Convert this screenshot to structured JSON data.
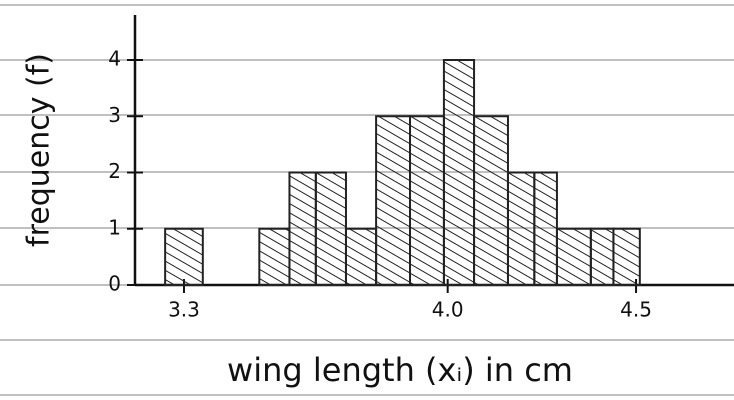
{
  "chart_data": {
    "type": "histogram",
    "xlabel": "wing length (xᵢ) in cm",
    "ylabel": "frequency (f)",
    "bins": [
      3.25,
      3.35,
      3.5,
      3.58,
      3.65,
      3.73,
      3.81,
      3.9,
      3.99,
      4.07,
      4.16,
      4.23,
      4.29,
      4.38,
      4.44,
      4.51
    ],
    "counts": [
      1,
      0,
      1,
      2,
      2,
      1,
      3,
      3,
      4,
      3,
      2,
      2,
      1,
      1,
      1
    ],
    "color": "#222222",
    "xlim": [
      3.17,
      4.76
    ],
    "ylim": [
      0,
      4.8
    ],
    "xticks": [
      3.3,
      {
        "value": 4,
        "label": "4.0"
      },
      4.5
    ],
    "yticks": [
      0,
      1,
      2,
      3,
      4
    ]
  }
}
